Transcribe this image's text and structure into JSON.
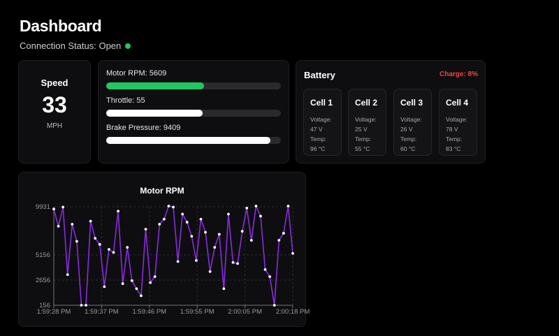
{
  "header": {
    "title": "Dashboard",
    "connection_status": "Connection Status: Open",
    "status_color": "#22c55e"
  },
  "speed": {
    "label": "Speed",
    "value": "33",
    "unit": "MPH"
  },
  "gauges": {
    "items": [
      {
        "label": "Motor RPM: 5609",
        "fraction": 0.56,
        "color": "#22c55e"
      },
      {
        "label": "Throttle: 55",
        "fraction": 0.55,
        "color": "#ffffff"
      },
      {
        "label": "Brake Pressure: 9409",
        "fraction": 0.94,
        "color": "#ffffff"
      }
    ]
  },
  "battery": {
    "title": "Battery",
    "charge": "Charge: 8%",
    "charge_color": "#ef4444",
    "cells": [
      {
        "name": "Cell 1",
        "voltage_label": "Voltage:",
        "voltage": "47 V",
        "temp_label": "Temp:",
        "temp": "96 °C"
      },
      {
        "name": "Cell 2",
        "voltage_label": "Voltage:",
        "voltage": "25 V",
        "temp_label": "Temp:",
        "temp": "55 °C"
      },
      {
        "name": "Cell 3",
        "voltage_label": "Voltage:",
        "voltage": "26 V",
        "temp_label": "Temp:",
        "temp": "60 °C"
      },
      {
        "name": "Cell 4",
        "voltage_label": "Voltage:",
        "voltage": "78 V",
        "temp_label": "Temp:",
        "temp": "83 °C"
      }
    ]
  },
  "chart_data": {
    "type": "line",
    "title": "Motor RPM",
    "color": "#8b2be2",
    "grid": true,
    "ylim": [
      156,
      9931
    ],
    "yticks": [
      "9931",
      "5156",
      "2656",
      "156"
    ],
    "xticks": [
      "1:59:28 PM",
      "1:59:37 PM",
      "1:59:46 PM",
      "1:59:55 PM",
      "2:00:05 PM",
      "2:00:18 PM"
    ],
    "values": [
      9700,
      8000,
      9900,
      3200,
      8200,
      6500,
      156,
      156,
      8500,
      6800,
      6200,
      2000,
      5700,
      5400,
      9500,
      2300,
      5900,
      2600,
      1800,
      1100,
      7700,
      2400,
      3000,
      8200,
      8700,
      10000,
      9900,
      4500,
      9200,
      8400,
      7000,
      4600,
      8700,
      7400,
      3500,
      5900,
      7200,
      1800,
      9200,
      4400,
      4300,
      7500,
      9800,
      6600,
      10000,
      9000,
      3700,
      3000,
      156,
      6600,
      7300,
      10000,
      5300
    ]
  }
}
